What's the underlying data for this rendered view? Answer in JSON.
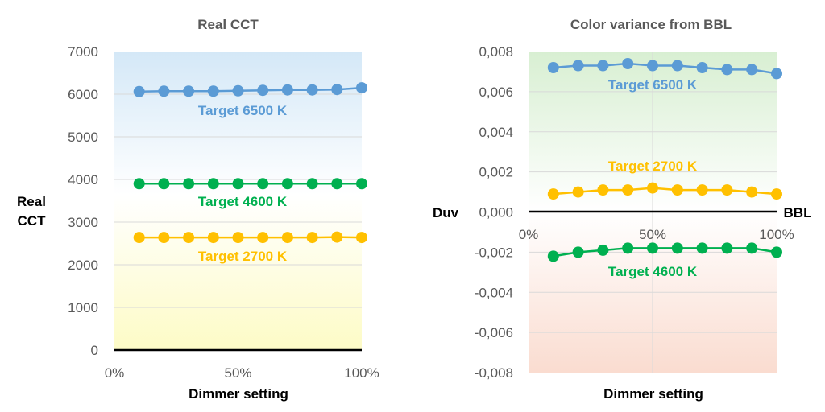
{
  "chart_data": [
    {
      "type": "line",
      "title": "Real CCT",
      "xlabel": "Dimmer setting",
      "ylabel": "Real CCT",
      "xlim": [
        0,
        100
      ],
      "ylim": [
        0,
        7000
      ],
      "x_tick_labels": [
        "0%",
        "50%",
        "100%"
      ],
      "y_tick_labels": [
        "0",
        "1000",
        "2000",
        "3000",
        "4000",
        "5000",
        "6000",
        "7000"
      ],
      "grid": true,
      "background": "gradient blue (top) to yellow (bottom)",
      "x": [
        10,
        20,
        30,
        40,
        50,
        60,
        70,
        80,
        90,
        100
      ],
      "series": [
        {
          "name": "Target 6500 K",
          "color": "#5b9bd5",
          "values": [
            6060,
            6070,
            6070,
            6070,
            6080,
            6090,
            6100,
            6100,
            6110,
            6150
          ]
        },
        {
          "name": "Target 4600 K",
          "color": "#00b050",
          "values": [
            3900,
            3900,
            3900,
            3900,
            3900,
            3900,
            3900,
            3900,
            3900,
            3900
          ]
        },
        {
          "name": "Target 2700 K",
          "color": "#ffc000",
          "values": [
            2640,
            2640,
            2640,
            2640,
            2640,
            2640,
            2640,
            2640,
            2650,
            2640
          ]
        }
      ]
    },
    {
      "type": "line",
      "title": "Color variance from BBL",
      "xlabel": "Dimmer setting",
      "ylabel": "Duv",
      "reference_line_label": "BBL",
      "xlim": [
        0,
        100
      ],
      "ylim": [
        -0.008,
        0.008
      ],
      "x_tick_labels": [
        "0%",
        "50%",
        "100%"
      ],
      "y_tick_labels": [
        "-0,008",
        "-0,006",
        "-0,004",
        "-0,002",
        "0,000",
        "0,002",
        "0,004",
        "0,006",
        "0,008"
      ],
      "grid": true,
      "background": "gradient green (top) to red (bottom)",
      "x": [
        10,
        20,
        30,
        40,
        50,
        60,
        70,
        80,
        90,
        100
      ],
      "series": [
        {
          "name": "Target 6500 K",
          "color": "#5b9bd5",
          "values": [
            0.0072,
            0.0073,
            0.0073,
            0.0074,
            0.0073,
            0.0073,
            0.0072,
            0.0071,
            0.0071,
            0.0069
          ]
        },
        {
          "name": "Target 2700 K",
          "color": "#ffc000",
          "values": [
            0.0009,
            0.001,
            0.0011,
            0.0011,
            0.0012,
            0.0011,
            0.0011,
            0.0011,
            0.001,
            0.0009
          ]
        },
        {
          "name": "Target 4600 K",
          "color": "#00b050",
          "values": [
            -0.0022,
            -0.002,
            -0.0019,
            -0.0018,
            -0.0018,
            -0.0018,
            -0.0018,
            -0.0018,
            -0.0018,
            -0.002
          ]
        }
      ]
    }
  ]
}
